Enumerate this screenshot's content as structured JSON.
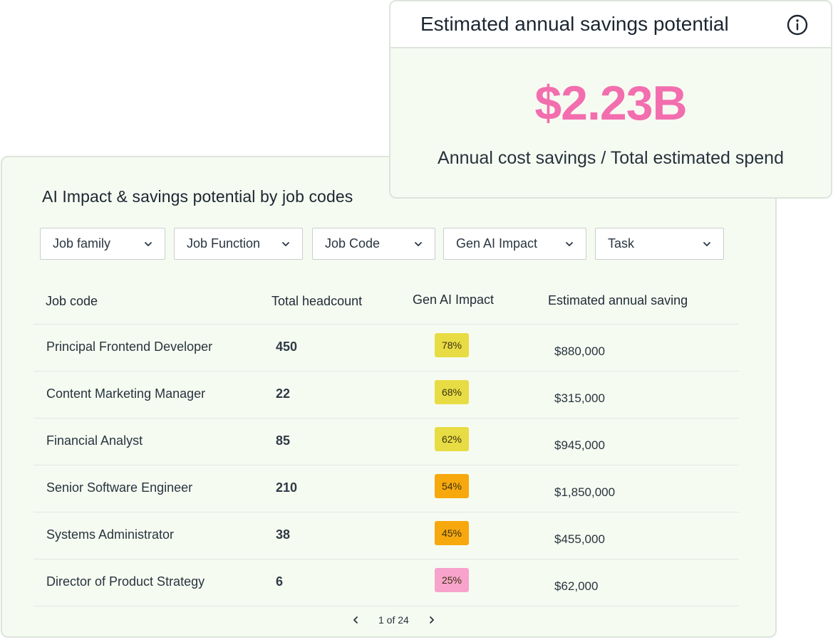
{
  "savings_card": {
    "title": "Estimated annual savings potential",
    "value": "$2.23B",
    "subtitle": "Annual cost savings / Total estimated spend",
    "info_icon": "info-icon"
  },
  "table_card": {
    "title": "AI Impact & savings potential by job codes",
    "filters": [
      {
        "label": "Job family"
      },
      {
        "label": "Job Function"
      },
      {
        "label": "Job Code"
      },
      {
        "label": "Gen AI Impact"
      },
      {
        "label": "Task"
      }
    ],
    "columns": {
      "job_code": "Job code",
      "headcount": "Total headcount",
      "impact": "Gen AI Impact",
      "saving": "Estimated annual saving"
    },
    "rows": [
      {
        "job": "Principal Frontend Developer",
        "headcount": "450",
        "impact": "78%",
        "impact_color": "#e8dc44",
        "saving": "$880,000"
      },
      {
        "job": "Content Marketing Manager",
        "headcount": "22",
        "impact": "68%",
        "impact_color": "#e8dc44",
        "saving": "$315,000"
      },
      {
        "job": "Financial Analyst",
        "headcount": "85",
        "impact": "62%",
        "impact_color": "#e8dc44",
        "saving": "$945,000"
      },
      {
        "job": "Senior Software Engineer",
        "headcount": "210",
        "impact": "54%",
        "impact_color": "#f7a80d",
        "saving": "$1,850,000"
      },
      {
        "job": "Systems Administrator",
        "headcount": "38",
        "impact": "45%",
        "impact_color": "#f7a80d",
        "saving": "$455,000"
      },
      {
        "job": "Director of Product Strategy",
        "headcount": "6",
        "impact": "25%",
        "impact_color": "#f7a3cb",
        "saving": "$62,000"
      }
    ],
    "pagination": {
      "text": "1 of 24",
      "prev_icon": "chevron-left-icon",
      "next_icon": "chevron-right-icon"
    }
  }
}
